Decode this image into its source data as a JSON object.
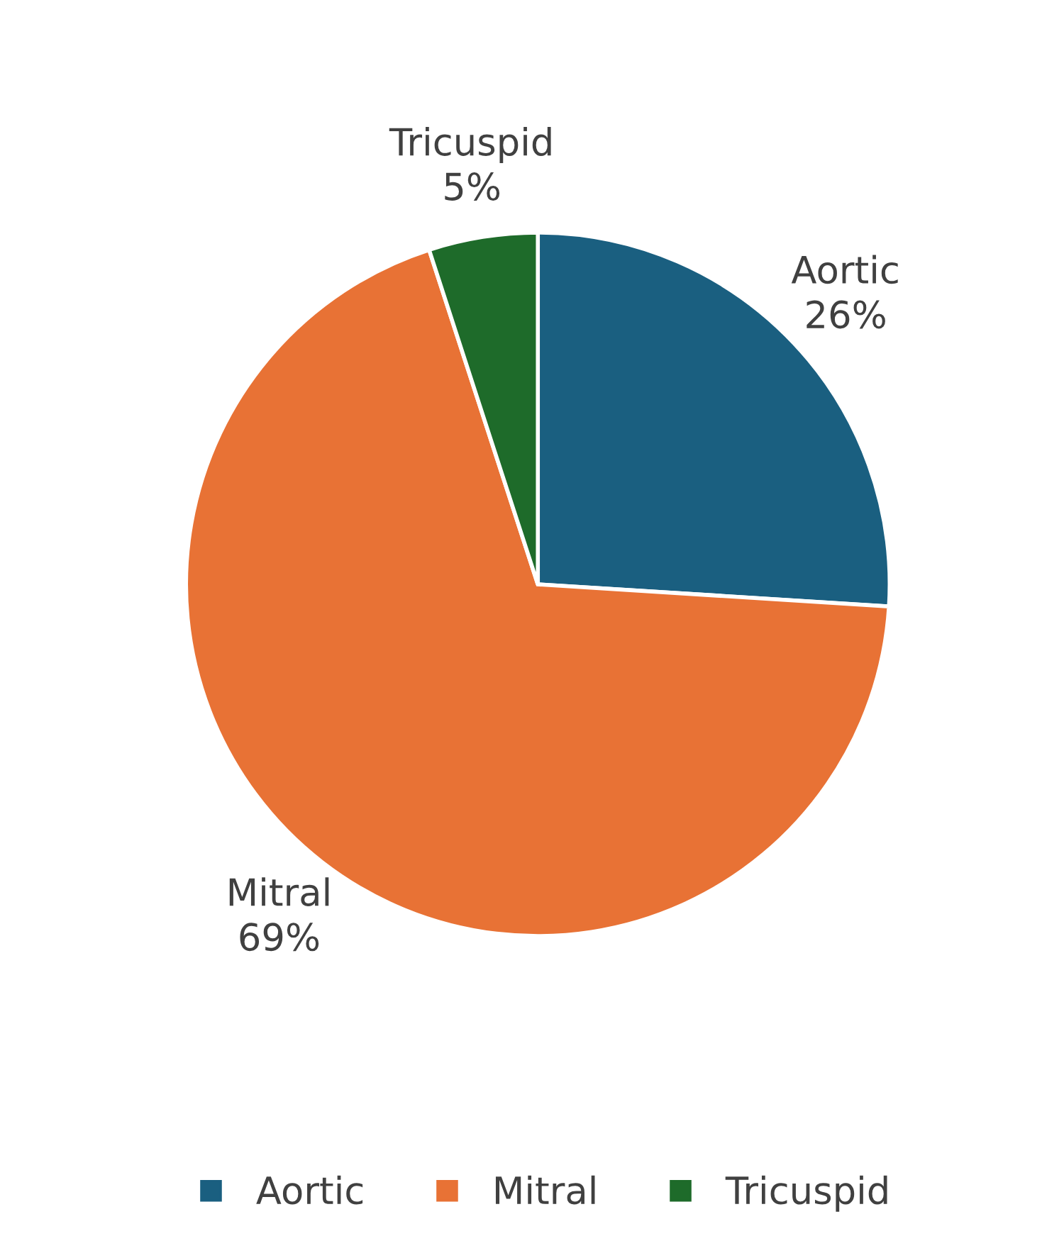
{
  "chart_data": {
    "type": "pie",
    "categories": [
      "Aortic",
      "Mitral",
      "Tricuspid"
    ],
    "values": [
      26,
      69,
      5
    ],
    "colors": [
      "#1a5f80",
      "#e87235",
      "#1e6b2a"
    ],
    "value_labels": [
      "26%",
      "69%",
      "5%"
    ],
    "legend": "bottom"
  }
}
